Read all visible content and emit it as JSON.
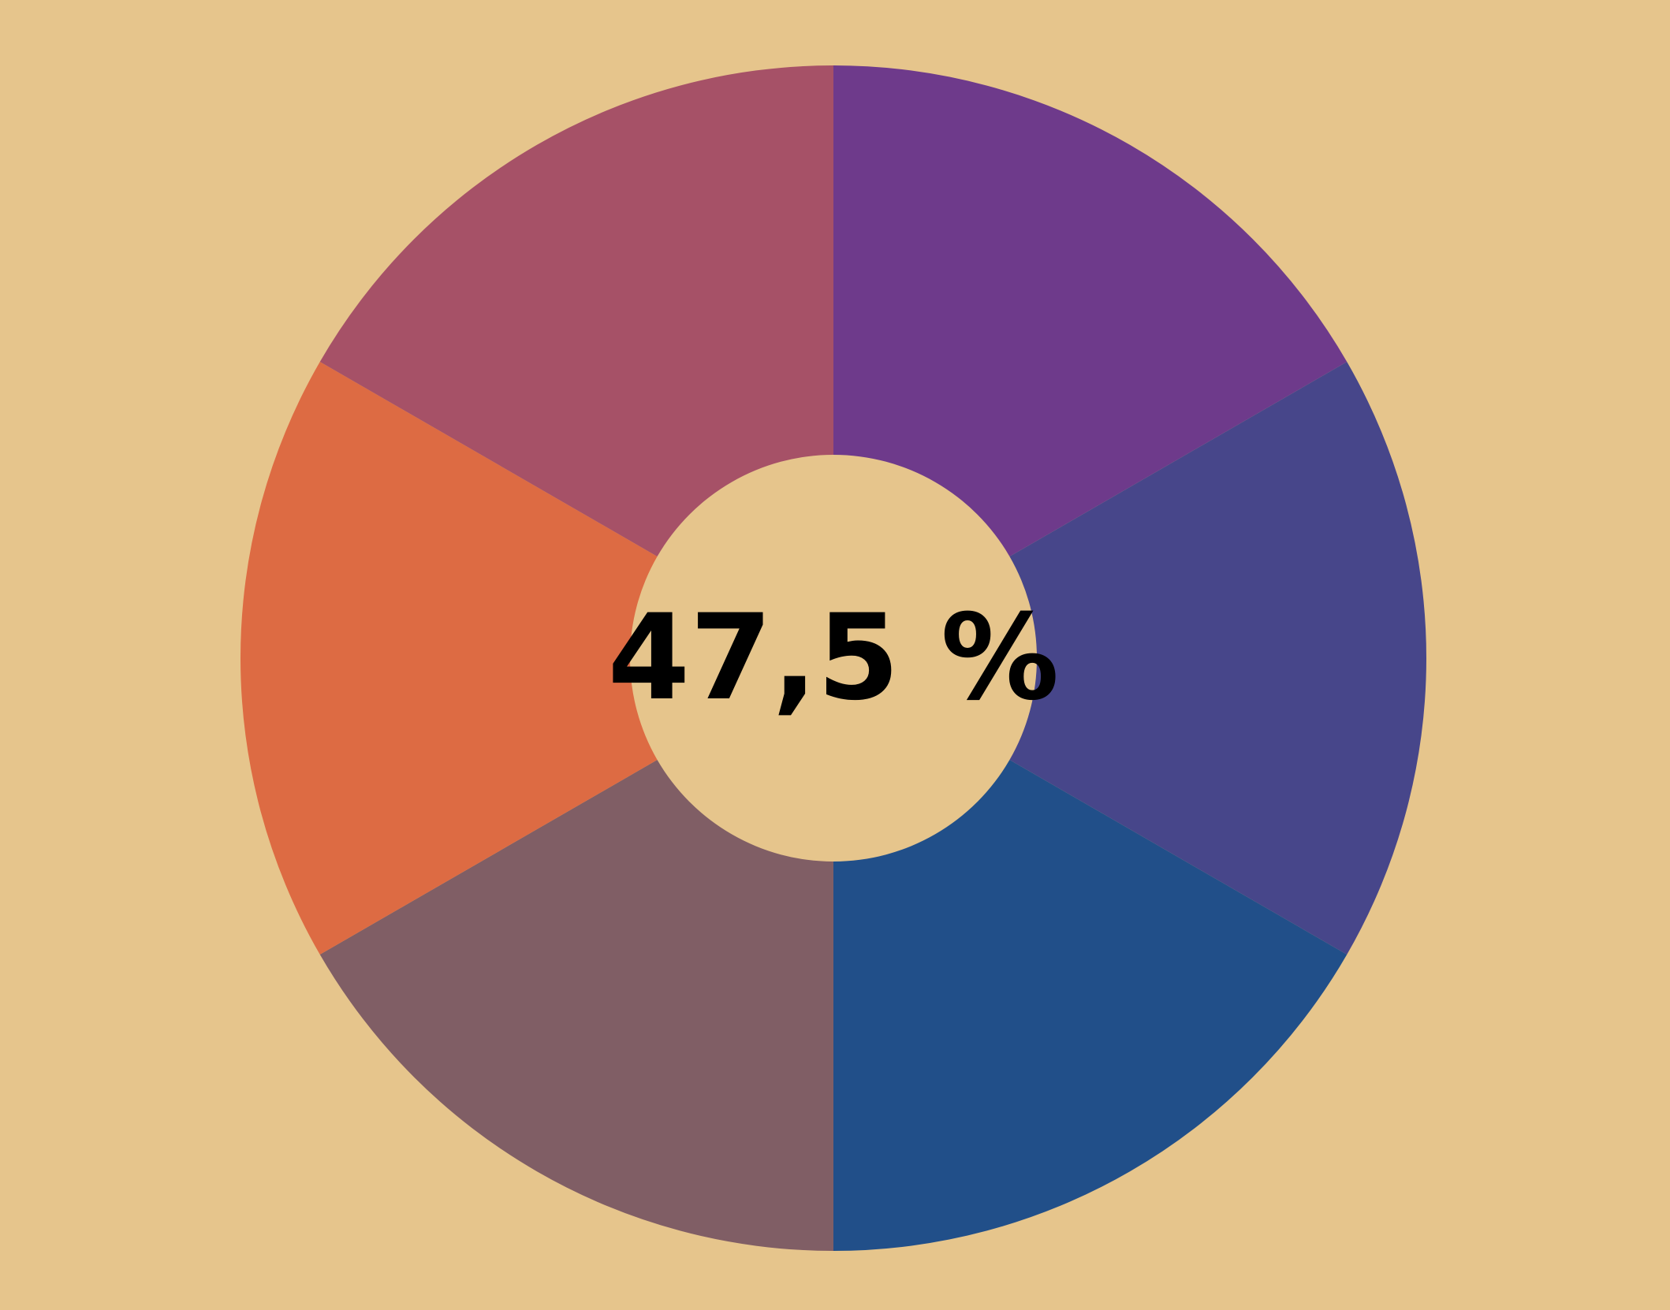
{
  "background_color": "#E6C58C",
  "center": {
    "label": "47,5 %"
  },
  "chart_data": {
    "type": "pie",
    "variant": "donut",
    "values": [
      1,
      1,
      1,
      1,
      1,
      1
    ],
    "colors": [
      "#6E3A8B",
      "#47468A",
      "#214F89",
      "#805E65",
      "#DD6B43",
      "#A65167"
    ],
    "start": "top",
    "direction": "clockwise",
    "legend": "none",
    "center_text": "47,5 %"
  }
}
